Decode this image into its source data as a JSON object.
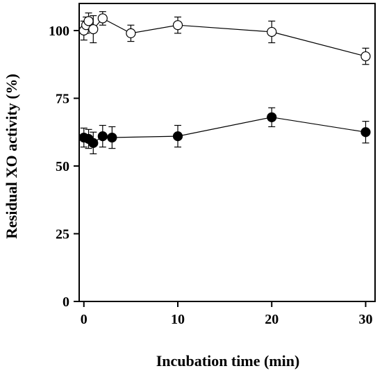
{
  "chart_data": {
    "type": "scatter",
    "title": "",
    "xlabel": "Incubation time (min)",
    "ylabel": "Residual XO activity (%)",
    "xlim": [
      -0.5,
      31
    ],
    "ylim": [
      0,
      110
    ],
    "x_ticks": [
      "0",
      "10",
      "20",
      "30"
    ],
    "x_tick_values": [
      0,
      10,
      20,
      30
    ],
    "y_ticks": [
      "0",
      "25",
      "50",
      "75",
      "100"
    ],
    "y_tick_values": [
      0,
      25,
      50,
      75,
      100
    ],
    "grid": false,
    "legend": "none",
    "series": [
      {
        "marker": "open-circle",
        "color": "#000000",
        "x": [
          0,
          0.25,
          0.5,
          1,
          2,
          5,
          10,
          20,
          30
        ],
        "y": [
          100,
          102,
          103.5,
          100.5,
          104.5,
          99,
          102,
          99.5,
          90.5
        ],
        "err": [
          3.5,
          3,
          3,
          5,
          2.5,
          3,
          3,
          4,
          3
        ]
      },
      {
        "marker": "filled-circle",
        "color": "#000000",
        "x": [
          0,
          0.5,
          1,
          2,
          3,
          10,
          20,
          30
        ],
        "y": [
          60.5,
          60,
          58.5,
          61,
          60.5,
          61,
          68,
          62.5
        ],
        "err": [
          3.5,
          3.5,
          4,
          4,
          4,
          4,
          3.5,
          4
        ]
      }
    ]
  }
}
